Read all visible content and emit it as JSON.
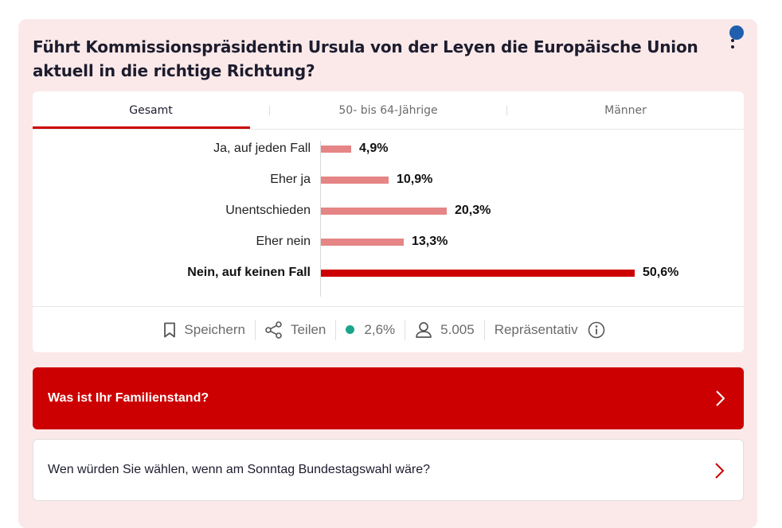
{
  "poll": {
    "question": "Führt Kommissionspräsidentin Ursula von der Leyen die Europäische Union aktuell in die richtige Richtung?",
    "tabs": [
      {
        "label": "Gesamt",
        "active": true
      },
      {
        "label": "50- bis 64-Jährige",
        "active": false
      },
      {
        "label": "Männer",
        "active": false
      }
    ]
  },
  "chart_data": {
    "type": "bar",
    "orientation": "horizontal",
    "categories": [
      "Ja, auf jeden Fall",
      "Eher ja",
      "Unentschieden",
      "Eher nein",
      "Nein, auf keinen Fall"
    ],
    "values": [
      4.9,
      10.9,
      20.3,
      13.3,
      50.6
    ],
    "value_labels": [
      "4,9%",
      "10,9%",
      "20,3%",
      "13,3%",
      "50,6%"
    ],
    "highlighted": "Nein, auf keinen Fall",
    "colors": {
      "bar": "#e58585",
      "highlight": "#cc0000"
    }
  },
  "actions": {
    "save_label": "Speichern",
    "share_label": "Teilen",
    "margin_label": "2,6%",
    "respondents_label": "5.005",
    "representative_label": "Repräsentativ"
  },
  "next_questions": {
    "primary": "Was ist Ihr Familienstand?",
    "secondary": "Wen würden Sie wählen, wenn am Sonntag Bundestagswahl wäre?"
  },
  "colors": {
    "accent": "#cc0000",
    "card_bg": "#fbe9e9",
    "status_green": "#1aa68c"
  }
}
